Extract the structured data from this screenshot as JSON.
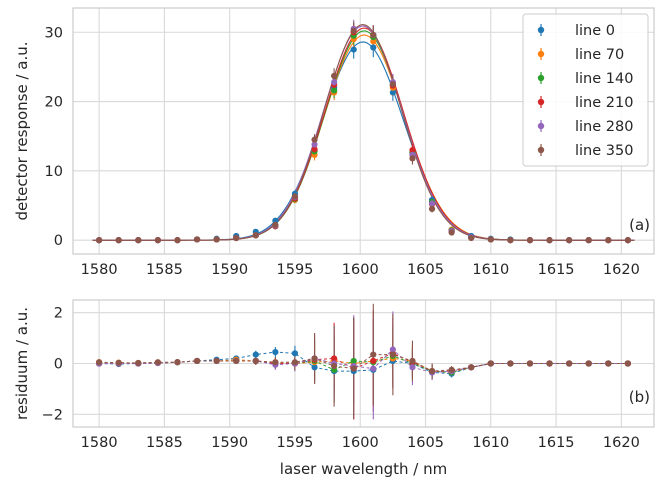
{
  "figure": {
    "panel_a_tag": "(a)",
    "panel_b_tag": "(b)",
    "shared_xlabel": "laser wavelength / nm"
  },
  "chart_data": [
    {
      "type": "scatter",
      "panel": "top",
      "title": "",
      "xlabel": "",
      "ylabel": "detector response / a.u.",
      "xlim": [
        1578,
        1622.5
      ],
      "ylim": [
        -2,
        33.5
      ],
      "xticks": [
        1580,
        1585,
        1590,
        1595,
        1600,
        1605,
        1610,
        1615,
        1620
      ],
      "yticks": [
        0,
        10,
        20,
        30
      ],
      "grid": true,
      "legend": "top-right",
      "fit_curves": true,
      "x": [
        1580,
        1581.5,
        1583,
        1584.5,
        1586,
        1587.5,
        1589,
        1590.5,
        1592,
        1593.5,
        1595,
        1596.5,
        1598,
        1599.5,
        1601,
        1602.5,
        1604,
        1605.5,
        1607,
        1608.5,
        1610,
        1611.5,
        1613,
        1614.5,
        1616,
        1617.5,
        1619,
        1620.5
      ],
      "series": [
        {
          "name": "line 0",
          "color": "#1f77b4",
          "amplitude": 28.6,
          "center": 1600.2,
          "sigma": 3.1,
          "values": [
            0.0,
            0.0,
            0.0,
            0.0,
            0.0,
            0.1,
            0.2,
            0.6,
            1.2,
            2.8,
            6.7,
            13.0,
            22.0,
            27.5,
            27.8,
            21.3,
            12.5,
            5.8,
            1.5,
            0.6,
            0.2,
            0.1,
            0.0,
            0.0,
            0.0,
            0.0,
            0.0,
            0.0
          ],
          "errors": [
            0.05,
            0.05,
            0.05,
            0.05,
            0.05,
            0.05,
            0.1,
            0.2,
            0.3,
            0.4,
            0.5,
            0.8,
            1.1,
            1.3,
            1.4,
            1.2,
            0.9,
            0.5,
            0.3,
            0.1,
            0.05,
            0.05,
            0.05,
            0.05,
            0.05,
            0.05,
            0.05,
            0.05
          ]
        },
        {
          "name": "line 70",
          "color": "#ff7f0e",
          "amplitude": 29.6,
          "center": 1600.3,
          "sigma": 3.05,
          "values": [
            0.0,
            0.0,
            0.0,
            0.0,
            0.0,
            0.1,
            0.1,
            0.3,
            0.7,
            2.1,
            5.8,
            12.3,
            21.3,
            29.0,
            28.7,
            22.0,
            12.6,
            5.5,
            1.5,
            0.4,
            0.1,
            0.0,
            0.0,
            0.0,
            0.0,
            0.0,
            0.0,
            0.0
          ],
          "errors": [
            0.05,
            0.05,
            0.05,
            0.05,
            0.05,
            0.05,
            0.1,
            0.2,
            0.3,
            0.4,
            0.5,
            0.8,
            1.1,
            1.3,
            1.4,
            1.2,
            0.9,
            0.5,
            0.3,
            0.1,
            0.05,
            0.05,
            0.05,
            0.05,
            0.05,
            0.05,
            0.05,
            0.05
          ]
        },
        {
          "name": "line 140",
          "color": "#2ca02c",
          "amplitude": 30.2,
          "center": 1600.3,
          "sigma": 3.0,
          "values": [
            0.0,
            0.0,
            0.0,
            0.0,
            0.0,
            0.1,
            0.1,
            0.3,
            0.7,
            2.0,
            5.9,
            12.8,
            21.6,
            29.5,
            29.3,
            22.4,
            12.7,
            5.5,
            1.4,
            0.4,
            0.1,
            0.0,
            0.0,
            0.0,
            0.0,
            0.0,
            0.0,
            0.0
          ],
          "errors": [
            0.05,
            0.05,
            0.05,
            0.05,
            0.05,
            0.05,
            0.1,
            0.2,
            0.3,
            0.4,
            0.5,
            0.8,
            1.1,
            1.3,
            1.4,
            1.2,
            0.9,
            0.5,
            0.3,
            0.1,
            0.05,
            0.05,
            0.05,
            0.05,
            0.05,
            0.05,
            0.05,
            0.05
          ]
        },
        {
          "name": "line 210",
          "color": "#d62728",
          "amplitude": 30.6,
          "center": 1600.3,
          "sigma": 3.0,
          "values": [
            0.0,
            0.0,
            0.0,
            0.0,
            0.0,
            0.1,
            0.1,
            0.3,
            0.7,
            2.0,
            6.0,
            13.1,
            22.4,
            30.0,
            29.6,
            22.3,
            13.0,
            5.2,
            1.3,
            0.4,
            0.1,
            0.0,
            0.0,
            0.0,
            0.0,
            0.0,
            0.0,
            0.0
          ],
          "errors": [
            0.05,
            0.05,
            0.05,
            0.05,
            0.05,
            0.05,
            0.1,
            0.2,
            0.3,
            0.4,
            0.5,
            0.8,
            1.1,
            1.3,
            1.4,
            1.2,
            0.9,
            0.5,
            0.3,
            0.1,
            0.05,
            0.05,
            0.05,
            0.05,
            0.05,
            0.05,
            0.05,
            0.05
          ]
        },
        {
          "name": "line 280",
          "color": "#9467bd",
          "amplitude": 30.9,
          "center": 1600.2,
          "sigma": 3.0,
          "values": [
            0.0,
            0.0,
            0.0,
            0.0,
            0.0,
            0.1,
            0.1,
            0.3,
            0.7,
            2.1,
            6.2,
            13.8,
            22.8,
            30.5,
            29.6,
            22.8,
            12.3,
            5.3,
            1.3,
            0.4,
            0.1,
            0.0,
            0.0,
            0.0,
            0.0,
            0.0,
            0.0,
            0.0
          ],
          "errors": [
            0.05,
            0.05,
            0.05,
            0.05,
            0.05,
            0.05,
            0.1,
            0.2,
            0.3,
            0.4,
            0.5,
            0.8,
            1.1,
            1.3,
            1.4,
            1.2,
            0.9,
            0.5,
            0.3,
            0.1,
            0.05,
            0.05,
            0.05,
            0.05,
            0.05,
            0.05,
            0.05,
            0.05
          ]
        },
        {
          "name": "line 350",
          "color": "#8c564b",
          "amplitude": 31.1,
          "center": 1600.2,
          "sigma": 2.95,
          "values": [
            0.0,
            0.0,
            0.0,
            0.0,
            0.0,
            0.1,
            0.1,
            0.3,
            0.7,
            2.2,
            6.3,
            14.5,
            23.7,
            30.2,
            29.6,
            22.5,
            11.8,
            4.5,
            1.1,
            0.3,
            0.1,
            0.0,
            0.0,
            0.0,
            0.0,
            0.0,
            0.0,
            0.0
          ],
          "errors": [
            0.05,
            0.05,
            0.05,
            0.05,
            0.05,
            0.05,
            0.1,
            0.2,
            0.3,
            0.4,
            0.5,
            0.8,
            1.1,
            1.3,
            1.4,
            1.2,
            0.9,
            0.5,
            0.3,
            0.1,
            0.05,
            0.05,
            0.05,
            0.05,
            0.05,
            0.05,
            0.05,
            0.05
          ]
        }
      ]
    },
    {
      "type": "scatter",
      "panel": "bottom",
      "title": "",
      "xlabel": "laser wavelength / nm",
      "ylabel": "residuum / a.u.",
      "xlim": [
        1578,
        1622.5
      ],
      "ylim": [
        -2.5,
        2.5
      ],
      "xticks": [
        1580,
        1585,
        1590,
        1595,
        1600,
        1605,
        1610,
        1615,
        1620
      ],
      "yticks": [
        -2,
        0,
        2
      ],
      "grid": true,
      "legend": "none",
      "connect_points": "dashed",
      "x": [
        1580,
        1581.5,
        1583,
        1584.5,
        1586,
        1587.5,
        1589,
        1590.5,
        1592,
        1593.5,
        1595,
        1596.5,
        1598,
        1599.5,
        1601,
        1602.5,
        1604,
        1605.5,
        1607,
        1608.5,
        1610,
        1611.5,
        1613,
        1614.5,
        1616,
        1617.5,
        1619,
        1620.5
      ],
      "series": [
        {
          "name": "line 0",
          "color": "#1f77b4",
          "values": [
            0.0,
            -0.02,
            0.0,
            0.02,
            0.05,
            0.1,
            0.15,
            0.2,
            0.35,
            0.45,
            0.4,
            -0.15,
            -0.3,
            -0.3,
            -0.25,
            0.1,
            0.0,
            -0.35,
            -0.4,
            -0.15,
            0.0,
            0.0,
            0.0,
            0.0,
            0.0,
            0.0,
            0.0,
            0.0
          ],
          "errors": [
            0.05,
            0.05,
            0.05,
            0.05,
            0.05,
            0.05,
            0.1,
            0.1,
            0.15,
            0.2,
            0.3,
            0.5,
            0.7,
            0.9,
            0.9,
            0.7,
            0.5,
            0.3,
            0.15,
            0.1,
            0.05,
            0.05,
            0.05,
            0.05,
            0.05,
            0.05,
            0.05,
            0.05
          ]
        },
        {
          "name": "line 70",
          "color": "#ff7f0e",
          "values": [
            0.05,
            0.03,
            0.02,
            0.03,
            0.05,
            0.1,
            0.1,
            0.15,
            0.1,
            0.05,
            0.0,
            0.05,
            0.1,
            0.0,
            0.1,
            0.2,
            0.1,
            -0.3,
            -0.35,
            -0.15,
            0.0,
            0.0,
            0.0,
            0.0,
            0.0,
            0.0,
            0.0,
            0.0
          ],
          "errors": [
            0.05,
            0.05,
            0.05,
            0.05,
            0.05,
            0.05,
            0.1,
            0.1,
            0.15,
            0.2,
            0.3,
            0.8,
            1.1,
            1.5,
            1.5,
            1.0,
            0.6,
            0.3,
            0.15,
            0.1,
            0.05,
            0.05,
            0.05,
            0.05,
            0.05,
            0.05,
            0.05,
            0.05
          ]
        },
        {
          "name": "line 140",
          "color": "#2ca02c",
          "values": [
            0.0,
            0.0,
            0.0,
            0.02,
            0.05,
            0.1,
            0.1,
            0.1,
            0.1,
            0.0,
            0.0,
            0.1,
            -0.25,
            0.1,
            0.05,
            0.3,
            0.0,
            -0.3,
            -0.35,
            -0.15,
            0.0,
            0.0,
            0.0,
            0.0,
            0.0,
            0.0,
            0.0,
            0.0
          ],
          "errors": [
            0.05,
            0.05,
            0.05,
            0.05,
            0.05,
            0.05,
            0.1,
            0.1,
            0.15,
            0.2,
            0.3,
            0.9,
            1.3,
            1.7,
            1.7,
            1.2,
            0.6,
            0.3,
            0.15,
            0.1,
            0.05,
            0.05,
            0.05,
            0.05,
            0.05,
            0.05,
            0.05,
            0.05
          ]
        },
        {
          "name": "line 210",
          "color": "#d62728",
          "values": [
            0.0,
            0.0,
            0.0,
            0.02,
            0.05,
            0.1,
            0.1,
            0.1,
            0.1,
            0.0,
            0.0,
            0.15,
            0.2,
            -0.2,
            0.1,
            0.4,
            0.05,
            -0.3,
            -0.3,
            -0.15,
            0.0,
            0.0,
            0.0,
            0.0,
            0.0,
            0.0,
            0.0,
            0.0
          ],
          "errors": [
            0.05,
            0.05,
            0.05,
            0.05,
            0.05,
            0.05,
            0.1,
            0.1,
            0.15,
            0.2,
            0.3,
            0.9,
            1.4,
            2.0,
            2.0,
            1.4,
            0.7,
            0.3,
            0.15,
            0.1,
            0.05,
            0.05,
            0.05,
            0.05,
            0.05,
            0.05,
            0.05,
            0.05
          ]
        },
        {
          "name": "line 280",
          "color": "#9467bd",
          "values": [
            0.0,
            0.0,
            0.0,
            0.02,
            0.05,
            0.1,
            0.1,
            0.1,
            0.1,
            -0.05,
            0.0,
            0.2,
            0.0,
            -0.1,
            -0.2,
            0.55,
            -0.15,
            -0.35,
            -0.3,
            -0.15,
            0.0,
            0.0,
            0.0,
            0.0,
            0.0,
            0.0,
            0.0,
            0.0
          ],
          "errors": [
            0.05,
            0.05,
            0.05,
            0.05,
            0.05,
            0.05,
            0.1,
            0.1,
            0.15,
            0.2,
            0.3,
            1.0,
            1.5,
            2.0,
            2.0,
            1.5,
            0.7,
            0.3,
            0.15,
            0.1,
            0.05,
            0.05,
            0.05,
            0.05,
            0.05,
            0.05,
            0.05,
            0.05
          ]
        },
        {
          "name": "line 350",
          "color": "#8c564b",
          "values": [
            0.05,
            0.03,
            0.02,
            0.05,
            0.05,
            0.1,
            0.1,
            0.1,
            0.1,
            0.05,
            0.05,
            0.2,
            -0.1,
            -0.2,
            0.35,
            0.35,
            0.1,
            -0.3,
            -0.25,
            -0.15,
            0.0,
            0.0,
            0.0,
            0.0,
            0.0,
            0.0,
            0.0,
            0.0
          ],
          "errors": [
            0.05,
            0.05,
            0.05,
            0.05,
            0.05,
            0.05,
            0.1,
            0.1,
            0.15,
            0.2,
            0.3,
            1.0,
            1.6,
            2.0,
            2.0,
            1.6,
            0.8,
            0.3,
            0.15,
            0.1,
            0.05,
            0.05,
            0.05,
            0.05,
            0.05,
            0.05,
            0.05,
            0.05
          ]
        }
      ]
    }
  ]
}
